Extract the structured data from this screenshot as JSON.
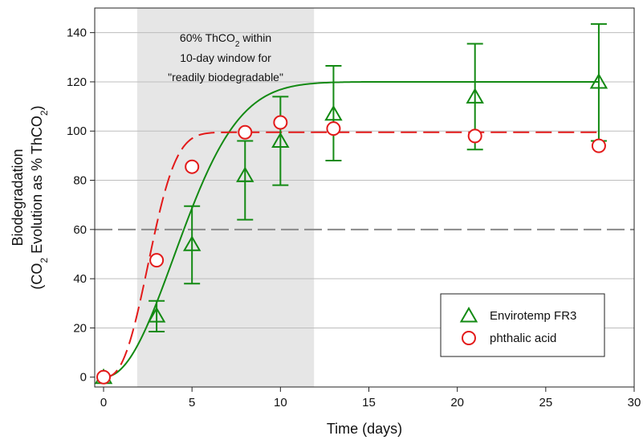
{
  "chart_data": {
    "type": "scatter",
    "xlabel": "Time (days)",
    "ylabel_line1": "Biodegradation",
    "ylabel_line2_parts": [
      "(CO",
      "2",
      " Evolution as % ThCO",
      "2",
      ")"
    ],
    "xlim": [
      -0.5,
      30
    ],
    "ylim": [
      -4,
      150
    ],
    "xticks": [
      0,
      5,
      10,
      15,
      20,
      25,
      30
    ],
    "yticks": [
      0,
      20,
      40,
      60,
      80,
      100,
      120,
      140
    ],
    "grid": "horizontal",
    "legend_position": "bottom-right",
    "threshold": {
      "value": 60,
      "style": "dashed",
      "color": "#8a8a8a"
    },
    "window": {
      "x_start": 1.9,
      "x_end": 11.9,
      "color": "#e6e6e6",
      "annotation_line1_parts": [
        "60% ThCO",
        "2",
        " within"
      ],
      "annotation_line2": "10-day window for",
      "annotation_line3": "\"readily biodegradable\"",
      "annotation_color": "#8c8c8c"
    },
    "series": [
      {
        "name": "Envirotemp FR3",
        "marker": "triangle",
        "color": "#138a13",
        "x": [
          0,
          3,
          5,
          8,
          10,
          13,
          21,
          28
        ],
        "y": [
          0,
          25,
          54,
          82,
          96,
          107,
          114,
          120
        ],
        "err_low": [
          0,
          18.5,
          38,
          64,
          78,
          88,
          92.5,
          96
        ],
        "err_high": [
          0,
          31,
          69.5,
          96,
          114,
          126.5,
          135.5,
          143.5
        ],
        "fit_line": "solid",
        "fit": {
          "max": 120,
          "k": 0.185,
          "n": 2.1
        }
      },
      {
        "name": "phthalic acid",
        "marker": "circle",
        "color": "#e31a1a",
        "x": [
          0,
          3,
          5,
          8,
          10,
          13,
          21,
          28
        ],
        "y": [
          0,
          47.5,
          85.5,
          99.5,
          103.5,
          101,
          98,
          94
        ],
        "fit_line": "dashed",
        "fit": {
          "max": 99.5,
          "k": 0.33,
          "n": 2.6
        }
      }
    ]
  }
}
